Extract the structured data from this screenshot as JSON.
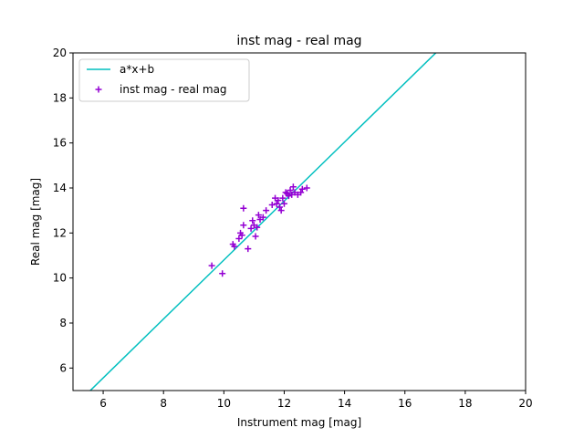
{
  "chart_data": {
    "type": "scatter",
    "title": "inst mag - real mag",
    "xlabel": "Instrument mag [mag]",
    "ylabel": "Real mag [mag]",
    "xlim": [
      5,
      20
    ],
    "ylim": [
      5,
      20
    ],
    "xticks": [
      6,
      8,
      10,
      12,
      14,
      16,
      18,
      20
    ],
    "yticks": [
      6,
      8,
      10,
      12,
      14,
      16,
      18,
      20
    ],
    "grid": false,
    "legend_placement": "top-left",
    "fit_line": {
      "name": "a*x+b",
      "slope": 1.31,
      "intercept": -2.3,
      "color": "#00bfbf"
    },
    "series": [
      {
        "name": "inst mag - real mag",
        "color": "#9400d3",
        "marker": "plus",
        "points": [
          [
            9.6,
            10.55
          ],
          [
            9.95,
            10.2
          ],
          [
            10.3,
            11.5
          ],
          [
            10.35,
            11.4
          ],
          [
            10.5,
            11.75
          ],
          [
            10.55,
            12.0
          ],
          [
            10.6,
            11.9
          ],
          [
            10.65,
            12.35
          ],
          [
            10.65,
            13.1
          ],
          [
            10.8,
            11.3
          ],
          [
            10.9,
            12.2
          ],
          [
            10.95,
            12.55
          ],
          [
            11.0,
            12.35
          ],
          [
            11.05,
            11.85
          ],
          [
            11.1,
            12.25
          ],
          [
            11.15,
            12.8
          ],
          [
            11.2,
            12.6
          ],
          [
            11.3,
            12.7
          ],
          [
            11.4,
            13.0
          ],
          [
            11.6,
            13.25
          ],
          [
            11.7,
            13.55
          ],
          [
            11.75,
            13.3
          ],
          [
            11.8,
            13.45
          ],
          [
            11.85,
            13.15
          ],
          [
            11.9,
            13.0
          ],
          [
            11.95,
            13.55
          ],
          [
            12.0,
            13.3
          ],
          [
            12.05,
            13.8
          ],
          [
            12.1,
            13.75
          ],
          [
            12.15,
            13.65
          ],
          [
            12.2,
            13.9
          ],
          [
            12.25,
            13.7
          ],
          [
            12.3,
            14.05
          ],
          [
            12.35,
            13.8
          ],
          [
            12.45,
            13.7
          ],
          [
            12.55,
            13.8
          ],
          [
            12.6,
            13.95
          ],
          [
            12.75,
            14.0
          ]
        ]
      }
    ]
  }
}
